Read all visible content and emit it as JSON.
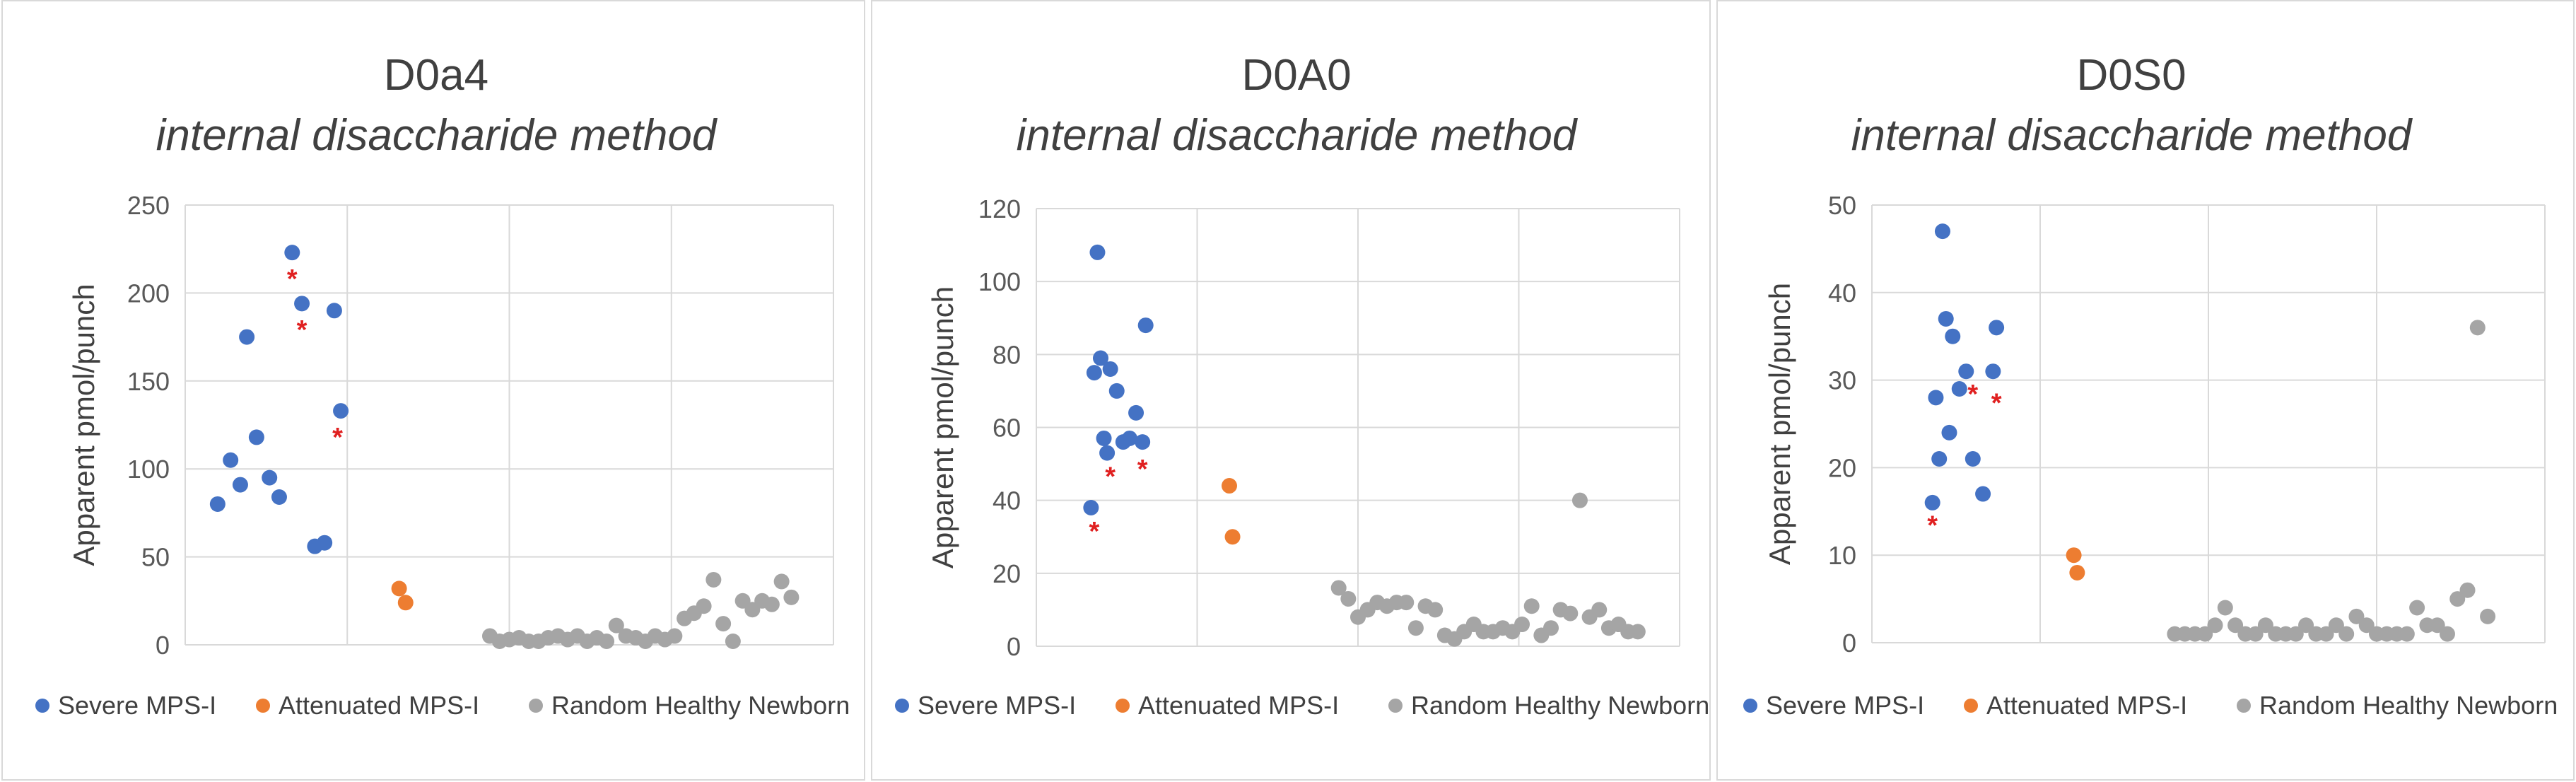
{
  "legend": [
    "Severe MPS-I",
    "Attenuated MPS-I",
    "Random Healthy Newborn"
  ],
  "colors": {
    "severe": "#4472c4",
    "attenuated": "#ed7d31",
    "healthy": "#a5a5a5",
    "star": "#e02020"
  },
  "chart_data": [
    {
      "type": "scatter",
      "title": "D0a4",
      "subtitle": "internal disaccharide method",
      "ylabel": "Apparent pmol/punch",
      "ylim": [
        0,
        250
      ],
      "yticks": [
        0,
        50,
        100,
        150,
        200,
        250
      ],
      "xlim": [
        0,
        4
      ],
      "series": [
        {
          "name": "Severe MPS-I",
          "x": [
            0.2,
            0.28,
            0.34,
            0.38,
            0.44,
            0.52,
            0.58,
            0.66,
            0.72,
            0.8,
            0.86,
            0.92,
            0.96
          ],
          "y": [
            80,
            105,
            91,
            175,
            118,
            95,
            84,
            223,
            194,
            56,
            58,
            190,
            133
          ]
        },
        {
          "name": "Attenuated MPS-I",
          "x": [
            1.32,
            1.36
          ],
          "y": [
            32,
            24
          ]
        },
        {
          "name": "Random Healthy Newborn",
          "x": [
            1.88,
            1.94,
            2.0,
            2.06,
            2.12,
            2.18,
            2.24,
            2.3,
            2.36,
            2.42,
            2.48,
            2.54,
            2.6,
            2.66,
            2.72,
            2.78,
            2.84,
            2.9,
            2.96,
            3.02,
            3.08,
            3.14,
            3.2,
            3.26,
            3.32,
            3.38,
            3.44,
            3.5,
            3.56,
            3.62,
            3.68,
            3.74
          ],
          "y": [
            5,
            2,
            3,
            4,
            2,
            2,
            4,
            5,
            3,
            5,
            2,
            4,
            2,
            11,
            5,
            4,
            2,
            5,
            3,
            5,
            15,
            18,
            22,
            37,
            12,
            2,
            25,
            20,
            25,
            23,
            36,
            27
          ]
        }
      ],
      "markers": [
        {
          "x": 0.66,
          "y": 211
        },
        {
          "x": 0.72,
          "y": 182
        },
        {
          "x": 0.94,
          "y": 121
        }
      ]
    },
    {
      "type": "scatter",
      "title": "D0A0",
      "subtitle": "internal disaccharide method",
      "ylabel": "Apparent pmol/punch",
      "ylim": [
        0,
        120
      ],
      "yticks": [
        0,
        20,
        40,
        60,
        80,
        100,
        120
      ],
      "xlim": [
        0,
        4
      ],
      "series": [
        {
          "name": "Severe MPS-I",
          "x": [
            0.34,
            0.36,
            0.38,
            0.4,
            0.42,
            0.44,
            0.46,
            0.5,
            0.54,
            0.58,
            0.62,
            0.66,
            0.68
          ],
          "y": [
            38,
            75,
            108,
            79,
            57,
            53,
            76,
            70,
            56,
            57,
            64,
            56,
            88
          ]
        },
        {
          "name": "Attenuated MPS-I",
          "x": [
            1.2,
            1.22
          ],
          "y": [
            44,
            30
          ]
        },
        {
          "name": "Random Healthy Newborn",
          "x": [
            1.88,
            1.94,
            2.0,
            2.06,
            2.12,
            2.18,
            2.24,
            2.3,
            2.36,
            2.42,
            2.48,
            2.54,
            2.6,
            2.66,
            2.72,
            2.78,
            2.84,
            2.9,
            2.96,
            3.02,
            3.08,
            3.14,
            3.2,
            3.26,
            3.32,
            3.38,
            3.44,
            3.5,
            3.56,
            3.62,
            3.68,
            3.74
          ],
          "y": [
            16,
            13,
            8,
            10,
            12,
            11,
            12,
            12,
            5,
            11,
            10,
            3,
            2,
            4,
            6,
            4,
            4,
            5,
            4,
            6,
            11,
            3,
            5,
            10,
            9,
            40,
            8,
            10,
            5,
            6,
            4,
            4
          ]
        }
      ],
      "markers": [
        {
          "x": 0.36,
          "y": 33
        },
        {
          "x": 0.46,
          "y": 48
        },
        {
          "x": 0.66,
          "y": 50
        }
      ]
    },
    {
      "type": "scatter",
      "title": "D0S0",
      "subtitle": "internal disaccharide method",
      "ylabel": "Apparent pmol/punch",
      "ylim": [
        0,
        50
      ],
      "yticks": [
        0,
        10,
        20,
        30,
        40,
        50
      ],
      "xlim": [
        0,
        4
      ],
      "series": [
        {
          "name": "Severe MPS-I",
          "x": [
            0.36,
            0.38,
            0.4,
            0.42,
            0.44,
            0.46,
            0.48,
            0.52,
            0.56,
            0.6,
            0.66,
            0.72,
            0.74
          ],
          "y": [
            16,
            28,
            21,
            47,
            37,
            24,
            35,
            29,
            31,
            21,
            17,
            31,
            36
          ]
        },
        {
          "name": "Attenuated MPS-I",
          "x": [
            1.2,
            1.22
          ],
          "y": [
            10,
            8
          ]
        },
        {
          "name": "Random Healthy Newborn",
          "x": [
            1.8,
            1.86,
            1.92,
            1.98,
            2.04,
            2.1,
            2.16,
            2.22,
            2.28,
            2.34,
            2.4,
            2.46,
            2.52,
            2.58,
            2.64,
            2.7,
            2.76,
            2.82,
            2.88,
            2.94,
            3.0,
            3.06,
            3.12,
            3.18,
            3.24,
            3.3,
            3.36,
            3.42,
            3.48,
            3.54,
            3.6,
            3.66
          ],
          "y": [
            1,
            1,
            1,
            1,
            2,
            4,
            2,
            1,
            1,
            2,
            1,
            1,
            1,
            2,
            1,
            1,
            2,
            1,
            3,
            2,
            1,
            1,
            1,
            1,
            4,
            2,
            2,
            1,
            5,
            6,
            36,
            3
          ]
        }
      ],
      "markers": [
        {
          "x": 0.36,
          "y": 14
        },
        {
          "x": 0.6,
          "y": 29
        },
        {
          "x": 0.74,
          "y": 28
        }
      ]
    }
  ]
}
